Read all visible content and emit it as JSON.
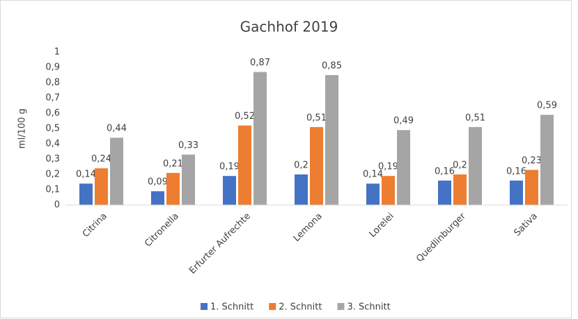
{
  "chart_data": {
    "type": "bar",
    "title": "Gachhof 2019",
    "y_label": "ml/100 g",
    "categories": [
      "Citrina",
      "Citronella",
      "Erfurter Aufrechte",
      "Lemona",
      "Lorelei",
      "Quedlinburger",
      "Sativa"
    ],
    "series": [
      {
        "name": "1. Schnitt",
        "color": "#4472c4",
        "values": [
          0.14,
          0.09,
          0.19,
          0.2,
          0.14,
          0.16,
          0.16
        ],
        "value_labels": [
          "0,14",
          "0,09",
          "0,19",
          "0,2",
          "0,14",
          "0,16",
          "0,16"
        ]
      },
      {
        "name": "2. Schnitt",
        "color": "#ed7d31",
        "values": [
          0.24,
          0.21,
          0.52,
          0.51,
          0.19,
          0.2,
          0.23
        ],
        "value_labels": [
          "0,24",
          "0,21",
          "0,52",
          "0,51",
          "0,19",
          "0,2",
          "0,23"
        ]
      },
      {
        "name": "3. Schnitt",
        "color": "#a5a5a5",
        "values": [
          0.44,
          0.33,
          0.87,
          0.85,
          0.49,
          0.51,
          0.59
        ],
        "value_labels": [
          "0,44",
          "0,33",
          "0,87",
          "0,85",
          "0,49",
          "0,51",
          "0,59"
        ]
      }
    ],
    "ylim": [
      0,
      1
    ],
    "yticks": [
      0,
      {
        "value": 0.1,
        "label": "0,1"
      },
      {
        "value": 0.2,
        "label": "0,2"
      },
      {
        "value": 0.3,
        "label": "0,3"
      },
      {
        "value": 0.4,
        "label": "0,4"
      },
      {
        "value": 0.5,
        "label": "0,5"
      },
      {
        "value": 0.6,
        "label": "0,6"
      },
      {
        "value": 0.7,
        "label": "0,7"
      },
      {
        "value": 0.8,
        "label": "0,8"
      },
      {
        "value": 0.9,
        "label": "0,9"
      },
      1
    ],
    "grid": false,
    "legend": "bottom"
  }
}
